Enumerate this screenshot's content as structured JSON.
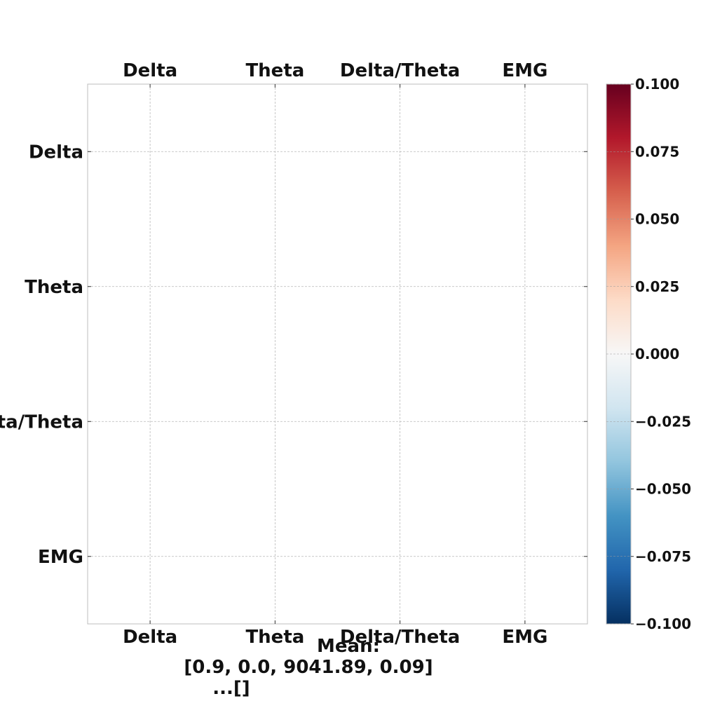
{
  "chart_data": {
    "type": "heatmap",
    "title": "",
    "x_categories": [
      "Delta",
      "Theta",
      "Delta/Theta",
      "EMG"
    ],
    "y_categories": [
      "Delta",
      "Theta",
      "Delta/Theta",
      "EMG"
    ],
    "values": [],
    "grid": true,
    "colorbar": {
      "cmap": "RdBu_r",
      "vmin": -0.1,
      "vmax": 0.1,
      "tick_values": [
        0.1,
        0.075,
        0.05,
        0.025,
        0.0,
        -0.025,
        -0.05,
        -0.075,
        -0.1
      ],
      "tick_labels": [
        "0.100",
        "0.075",
        "0.050",
        "0.025",
        "0.000",
        "−0.025",
        "−0.050",
        "−0.075",
        "−0.100"
      ]
    },
    "annotation_lines": [
      "Mean:",
      "[0.9, 0.0, 9041.89, 0.09]",
      "...[]"
    ]
  }
}
